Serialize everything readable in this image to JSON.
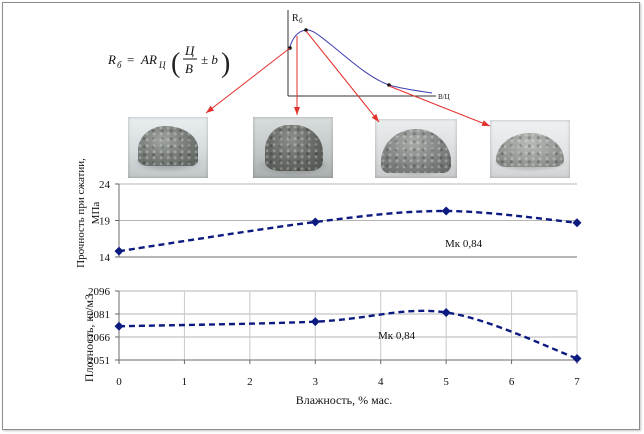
{
  "formula": {
    "lhs": "R",
    "lhs_sub": "б",
    "eq": "=",
    "rhs": "AR",
    "rhs_sub": "Ц",
    "lparen": "(",
    "numerator": "Ц",
    "denominator": "В",
    "tail": "± b",
    "rparen": ")"
  },
  "inset": {
    "ylabel": "R",
    "ylabel_sub": "б",
    "xlabel": "В/Ц"
  },
  "colors": {
    "series": "#0d1a80",
    "arrow": "#e3312d",
    "inset_curve": "#3d3db0"
  },
  "chart_data": [
    {
      "type": "line",
      "ylabel_lines": [
        "Прочность при сжатии,",
        "МПа"
      ],
      "x": [
        0,
        3,
        5,
        7
      ],
      "xlim": [
        0,
        7
      ],
      "ylim": [
        14,
        24
      ],
      "yticks": [
        14,
        19,
        24
      ],
      "grid": "y",
      "series": [
        {
          "name": "Мк 0,84",
          "values": [
            14.8,
            18.8,
            20.3,
            18.7
          ]
        }
      ]
    },
    {
      "type": "line",
      "ylabel": "Плотность, кг/м3",
      "xlabel": "Влажность, % мас.",
      "x": [
        0,
        3,
        5,
        7
      ],
      "xlim": [
        0,
        7
      ],
      "ylim": [
        2051,
        2096
      ],
      "xticks": [
        0,
        1,
        2,
        3,
        4,
        5,
        6,
        7
      ],
      "yticks": [
        2051,
        2066,
        2081,
        2096
      ],
      "grid": "both",
      "series": [
        {
          "name": "Мк 0,84",
          "values": [
            2073,
            2076,
            2082,
            2052
          ]
        }
      ]
    }
  ]
}
